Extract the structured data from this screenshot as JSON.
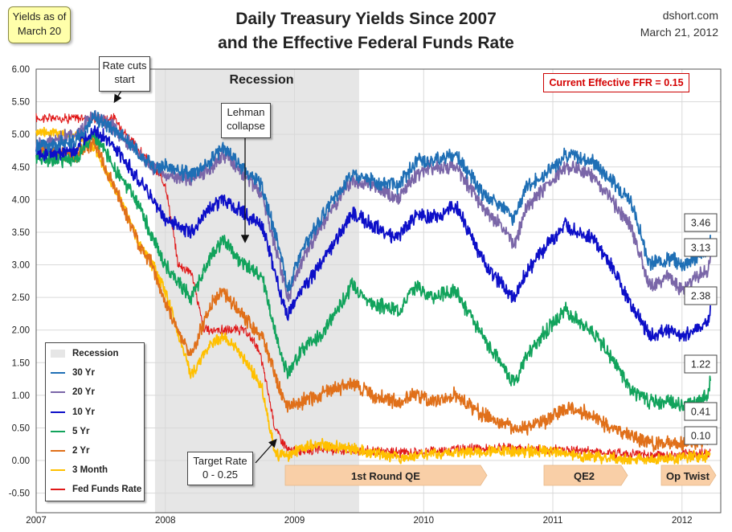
{
  "badge": {
    "line1": "Yields as of",
    "line2": "March 20"
  },
  "title_line1": "Daily Treasury Yields Since 2007",
  "title_line2": "and the Effective Federal Funds Rate",
  "source": "dshort.com",
  "date": "March 21, 2012",
  "current_ffr": "Current Effective FFR = 0.15",
  "colors": {
    "30 Yr": "#1f6fb5",
    "20 Yr": "#7a66a8",
    "10 Yr": "#0d0fc8",
    "5 Yr": "#12a35c",
    "2 Yr": "#e0701a",
    "3 Month": "#ffc000",
    "Fed Funds Rate": "#e01818",
    "recession": "#e6e6e6",
    "band": "#f9cfa7"
  },
  "annotations": {
    "rate_cuts": [
      "Rate cuts",
      "start"
    ],
    "lehman": [
      "Lehman",
      "collapse"
    ],
    "target_rate": [
      "Target Rate",
      "0 - 0.25"
    ],
    "recession": "Recession",
    "qe1": "1st Round QE",
    "qe2": "QE2",
    "op_twist": "Op Twist"
  },
  "chart_data": {
    "type": "line",
    "title": "Daily Treasury Yields Since 2007 and the Effective Federal Funds Rate",
    "xlabel": "",
    "ylabel": "",
    "x_ticks": [
      "2007",
      "2008",
      "2009",
      "2010",
      "2011",
      "2012"
    ],
    "y_ticks": [
      "6.00",
      "5.50",
      "5.00",
      "4.50",
      "4.00",
      "3.50",
      "3.00",
      "2.50",
      "2.00",
      "1.50",
      "1.00",
      "0.50",
      "0.00",
      "-0.50"
    ],
    "ylim": [
      -0.8,
      6.0
    ],
    "xlim": [
      2007.0,
      2012.3
    ],
    "grid": true,
    "legend": "bottom-left",
    "recession": [
      2007.92,
      2009.5
    ],
    "legend_items": [
      "Recession",
      "30 Yr",
      "20 Yr",
      "10 Yr",
      "5 Yr",
      "2 Yr",
      "3 Month",
      "Fed Funds Rate"
    ],
    "end_labels": [
      "3.46",
      "3.13",
      "2.38",
      "1.22",
      "0.41",
      "0.10"
    ],
    "series": [
      {
        "name": "30 Yr",
        "x": [
          2007.0,
          2007.3,
          2007.45,
          2007.6,
          2007.8,
          2007.9,
          2008.0,
          2008.2,
          2008.35,
          2008.45,
          2008.6,
          2008.75,
          2008.9,
          2008.95,
          2009.05,
          2009.2,
          2009.45,
          2009.6,
          2009.8,
          2009.95,
          2010.05,
          2010.25,
          2010.45,
          2010.6,
          2010.7,
          2010.8,
          2010.95,
          2011.1,
          2011.3,
          2011.45,
          2011.6,
          2011.75,
          2011.9,
          2012.0,
          2012.1,
          2012.2,
          2012.22
        ],
        "y": [
          4.8,
          4.9,
          5.25,
          5.1,
          4.7,
          4.5,
          4.5,
          4.4,
          4.6,
          4.8,
          4.5,
          4.2,
          3.1,
          2.6,
          3.2,
          3.7,
          4.4,
          4.3,
          4.2,
          4.6,
          4.6,
          4.7,
          4.1,
          3.9,
          3.7,
          4.2,
          4.4,
          4.7,
          4.6,
          4.3,
          4.0,
          3.0,
          3.1,
          3.0,
          3.1,
          3.2,
          3.46
        ]
      },
      {
        "name": "20 Yr",
        "x": [
          2007.0,
          2007.3,
          2007.45,
          2007.6,
          2007.8,
          2007.9,
          2008.0,
          2008.2,
          2008.35,
          2008.45,
          2008.6,
          2008.75,
          2008.9,
          2008.95,
          2009.05,
          2009.2,
          2009.45,
          2009.6,
          2009.8,
          2009.95,
          2010.05,
          2010.25,
          2010.45,
          2010.6,
          2010.7,
          2010.8,
          2010.95,
          2011.1,
          2011.3,
          2011.45,
          2011.6,
          2011.75,
          2011.9,
          2012.0,
          2012.1,
          2012.2,
          2012.22
        ],
        "y": [
          4.85,
          5.0,
          5.3,
          5.1,
          4.7,
          4.5,
          4.4,
          4.3,
          4.5,
          4.7,
          4.4,
          4.1,
          2.9,
          2.5,
          3.0,
          3.6,
          4.3,
          4.2,
          4.0,
          4.4,
          4.5,
          4.5,
          3.9,
          3.6,
          3.3,
          3.9,
          4.2,
          4.5,
          4.4,
          4.0,
          3.6,
          2.7,
          2.8,
          2.6,
          2.8,
          2.9,
          3.13
        ]
      },
      {
        "name": "10 Yr",
        "x": [
          2007.0,
          2007.3,
          2007.45,
          2007.6,
          2007.8,
          2007.9,
          2008.0,
          2008.2,
          2008.35,
          2008.45,
          2008.6,
          2008.75,
          2008.9,
          2008.95,
          2009.05,
          2009.2,
          2009.45,
          2009.6,
          2009.8,
          2009.95,
          2010.05,
          2010.25,
          2010.45,
          2010.6,
          2010.7,
          2010.8,
          2010.95,
          2011.1,
          2011.3,
          2011.45,
          2011.6,
          2011.75,
          2011.9,
          2012.0,
          2012.1,
          2012.2,
          2012.22
        ],
        "y": [
          4.7,
          4.75,
          5.1,
          4.8,
          4.3,
          4.0,
          3.7,
          3.5,
          3.9,
          4.0,
          3.8,
          3.6,
          2.5,
          2.2,
          2.6,
          3.0,
          3.8,
          3.6,
          3.4,
          3.8,
          3.7,
          3.9,
          3.1,
          2.7,
          2.5,
          2.9,
          3.3,
          3.6,
          3.4,
          3.0,
          2.4,
          1.9,
          2.0,
          1.9,
          2.0,
          2.1,
          2.38
        ]
      },
      {
        "name": "5 Yr",
        "x": [
          2007.0,
          2007.3,
          2007.45,
          2007.6,
          2007.8,
          2007.9,
          2008.0,
          2008.2,
          2008.35,
          2008.45,
          2008.6,
          2008.75,
          2008.9,
          2008.95,
          2009.05,
          2009.2,
          2009.45,
          2009.6,
          2009.8,
          2009.95,
          2010.05,
          2010.25,
          2010.45,
          2010.6,
          2010.7,
          2010.8,
          2010.95,
          2011.1,
          2011.3,
          2011.45,
          2011.6,
          2011.75,
          2011.9,
          2012.0,
          2012.1,
          2012.2,
          2012.22
        ],
        "y": [
          4.65,
          4.6,
          5.0,
          4.5,
          3.9,
          3.4,
          3.0,
          2.5,
          3.1,
          3.4,
          3.0,
          2.8,
          1.6,
          1.3,
          1.7,
          1.9,
          2.7,
          2.4,
          2.3,
          2.7,
          2.5,
          2.6,
          1.9,
          1.5,
          1.2,
          1.6,
          2.0,
          2.3,
          2.0,
          1.6,
          1.1,
          0.9,
          0.9,
          0.85,
          0.9,
          1.0,
          1.22
        ]
      },
      {
        "name": "2 Yr",
        "x": [
          2007.0,
          2007.3,
          2007.45,
          2007.6,
          2007.8,
          2007.9,
          2008.0,
          2008.2,
          2008.35,
          2008.45,
          2008.6,
          2008.75,
          2008.9,
          2008.95,
          2009.05,
          2009.2,
          2009.45,
          2009.6,
          2009.8,
          2009.95,
          2010.05,
          2010.25,
          2010.45,
          2010.6,
          2010.7,
          2010.8,
          2010.95,
          2011.1,
          2011.3,
          2011.45,
          2011.6,
          2011.75,
          2011.9,
          2012.0,
          2012.1,
          2012.2,
          2012.22
        ],
        "y": [
          4.8,
          4.65,
          4.9,
          4.2,
          3.3,
          3.0,
          2.4,
          1.6,
          2.4,
          2.6,
          2.2,
          1.9,
          1.0,
          0.8,
          0.9,
          1.0,
          1.2,
          1.0,
          0.9,
          1.0,
          0.9,
          1.0,
          0.7,
          0.6,
          0.5,
          0.5,
          0.6,
          0.8,
          0.7,
          0.5,
          0.4,
          0.25,
          0.25,
          0.25,
          0.28,
          0.3,
          0.41
        ]
      },
      {
        "name": "3 Month",
        "x": [
          2007.0,
          2007.3,
          2007.45,
          2007.6,
          2007.7,
          2007.8,
          2007.9,
          2008.0,
          2008.2,
          2008.35,
          2008.45,
          2008.6,
          2008.75,
          2008.85,
          2008.95,
          2009.05,
          2009.2,
          2009.45,
          2009.8,
          2010.2,
          2010.6,
          2010.95,
          2011.3,
          2011.6,
          2011.75,
          2012.0,
          2012.2,
          2012.22
        ],
        "y": [
          5.05,
          5.0,
          4.8,
          4.2,
          3.8,
          3.3,
          3.0,
          2.6,
          1.3,
          1.8,
          1.9,
          1.6,
          1.1,
          0.1,
          0.05,
          0.2,
          0.25,
          0.18,
          0.05,
          0.12,
          0.15,
          0.14,
          0.05,
          0.02,
          0.02,
          0.04,
          0.08,
          0.1
        ]
      },
      {
        "name": "Fed Funds Rate",
        "x": [
          2007.0,
          2007.3,
          2007.6,
          2007.7,
          2007.8,
          2007.9,
          2008.0,
          2008.1,
          2008.2,
          2008.3,
          2008.45,
          2008.6,
          2008.7,
          2008.75,
          2008.85,
          2008.95,
          2009.05,
          2009.2,
          2009.5,
          2009.9,
          2010.3,
          2010.8,
          2011.2,
          2011.6,
          2011.9,
          2012.2,
          2012.22
        ],
        "y": [
          5.25,
          5.25,
          5.25,
          5.0,
          4.75,
          4.5,
          4.25,
          3.0,
          2.9,
          2.0,
          2.0,
          2.0,
          1.8,
          1.5,
          0.5,
          0.15,
          0.15,
          0.18,
          0.15,
          0.12,
          0.18,
          0.18,
          0.16,
          0.1,
          0.08,
          0.12,
          0.15
        ]
      }
    ]
  }
}
